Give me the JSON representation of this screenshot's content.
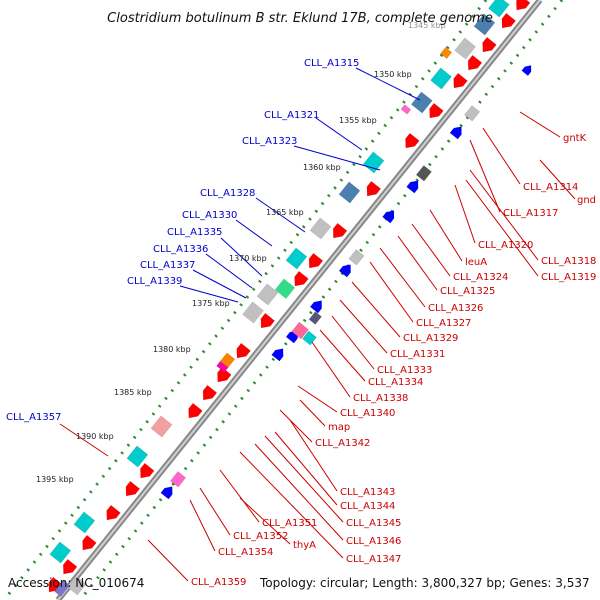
{
  "title": "Clostridium botulinum B str. Eklund 17B, complete genome",
  "footer": {
    "accession": "Accession: NC_010674",
    "summary": "Topology: circular; Length: 3,800,327 bp; Genes: 3,537"
  },
  "ticks": [
    "1350 kbp",
    "1355 kbp",
    "1360 kbp",
    "1365 kbp",
    "1370 kbp",
    "1375 kbp",
    "1380 kbp",
    "1385 kbp",
    "1390 kbp",
    "1395 kbp"
  ],
  "top_tick_partial": "1345 kbp",
  "blue_labels": [
    "CLL_A1315",
    "CLL_A1321",
    "CLL_A1323",
    "CLL_A1328",
    "CLL_A1330",
    "CLL_A1335",
    "CLL_A1336",
    "CLL_A1337",
    "CLL_A1339",
    "CLL_A1357"
  ],
  "red_labels": [
    "gntK",
    "CLL_A1314",
    "gnd",
    "CLL_A1317",
    "CLL_A1320",
    "CLL_A1318",
    "CLL_A1319",
    "leuA",
    "CLL_A1324",
    "CLL_A1325",
    "CLL_A1326",
    "CLL_A1327",
    "CLL_A1329",
    "CLL_A1331",
    "CLL_A1333",
    "CLL_A1334",
    "CLL_A1338",
    "CLL_A1340",
    "map",
    "CLL_A1342",
    "CLL_A1343",
    "CLL_A1344",
    "CLL_A1345",
    "CLL_A1346",
    "CLL_A1347",
    "CLL_A1351",
    "CLL_A1352",
    "thyA",
    "CLL_A1354",
    "CLL_A1359"
  ],
  "colors": {
    "backbone": "#777777",
    "tick_dots": "#2e8b2e",
    "forward_gene": "#ff0000",
    "reverse_gene": "#0000ff",
    "cyan_feature": "#00cccc",
    "steel_feature": "#4a7fb0",
    "gray_feature": "#c0c0c0",
    "blue_label": "#0000cc",
    "red_label": "#cc0000"
  }
}
